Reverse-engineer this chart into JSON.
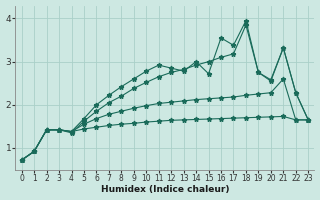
{
  "xlabel": "Humidex (Indice chaleur)",
  "xlim": [
    -0.5,
    23.5
  ],
  "ylim": [
    0.5,
    4.3
  ],
  "yticks": [
    1,
    2,
    3,
    4
  ],
  "xticks": [
    0,
    1,
    2,
    3,
    4,
    5,
    6,
    7,
    8,
    9,
    10,
    11,
    12,
    13,
    14,
    15,
    16,
    17,
    18,
    19,
    20,
    21,
    22,
    23
  ],
  "bg_color": "#cde8e2",
  "grid_color": "#aad0c8",
  "line_color": "#1a6b5a",
  "series": [
    [
      0.72,
      0.92,
      1.42,
      1.42,
      1.38,
      1.44,
      1.48,
      1.52,
      1.55,
      1.57,
      1.6,
      1.62,
      1.64,
      1.65,
      1.66,
      1.67,
      1.68,
      1.69,
      1.7,
      1.71,
      1.72,
      1.73,
      1.65,
      1.65
    ],
    [
      0.72,
      0.92,
      1.42,
      1.42,
      1.38,
      1.55,
      1.68,
      1.78,
      1.85,
      1.92,
      1.98,
      2.03,
      2.06,
      2.09,
      2.12,
      2.14,
      2.16,
      2.18,
      2.22,
      2.25,
      2.28,
      2.6,
      1.65,
      1.65
    ],
    [
      0.72,
      0.92,
      1.42,
      1.42,
      1.38,
      1.68,
      2.0,
      2.22,
      2.42,
      2.6,
      2.78,
      2.92,
      2.85,
      2.78,
      3.0,
      2.72,
      3.55,
      3.38,
      3.95,
      2.75,
      2.58,
      3.32,
      2.28,
      1.65
    ],
    [
      0.72,
      0.92,
      1.42,
      1.42,
      1.35,
      1.62,
      1.85,
      2.05,
      2.2,
      2.38,
      2.52,
      2.65,
      2.75,
      2.82,
      2.92,
      3.0,
      3.1,
      3.18,
      3.85,
      2.75,
      2.55,
      3.32,
      2.28,
      1.65
    ]
  ]
}
